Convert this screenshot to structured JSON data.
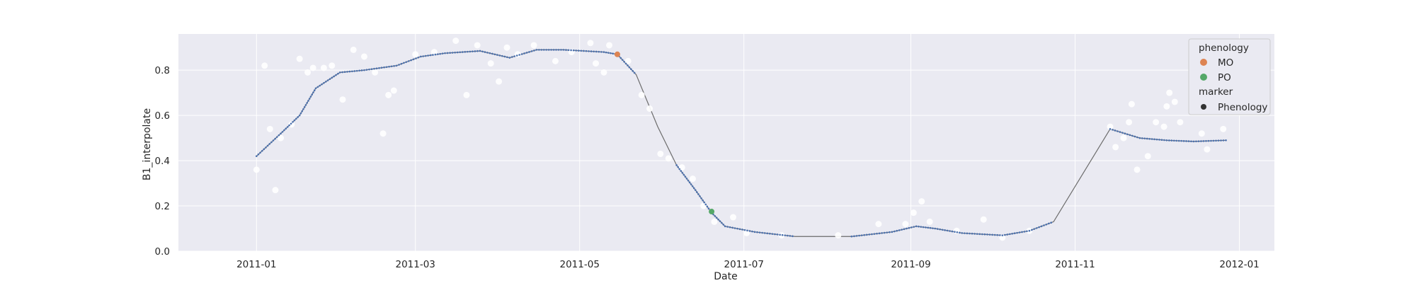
{
  "chart_data": {
    "type": "scatter",
    "title": "",
    "xlabel": "Date",
    "ylabel": "B1_interpolate",
    "x_range": [
      "2010-12-03",
      "2012-01-14"
    ],
    "ylim": [
      0,
      0.96
    ],
    "x_ticks": [
      "2011-01",
      "2011-03",
      "2011-05",
      "2011-07",
      "2011-09",
      "2011-11",
      "2012-01"
    ],
    "y_ticks": [
      0.0,
      0.2,
      0.4,
      0.6,
      0.8
    ],
    "grid": true,
    "legend_placement": "top-right",
    "legend": {
      "group1_title": "phenology",
      "group2_title": "marker",
      "items": [
        {
          "label": "MO",
          "color": "#dd8452"
        },
        {
          "label": "PO",
          "color": "#55a868"
        },
        {
          "label": "Phenology",
          "color": "#333333"
        }
      ]
    },
    "colors": {
      "background": "#eaeaf2",
      "grid": "#ffffff",
      "raw_points": "#ffffff",
      "interpolated_line": "#6b6b6b",
      "interpolated_points": "#4c72b0"
    },
    "series": [
      {
        "kind": "interpolated_curve",
        "points": [
          [
            "2011-01-01",
            0.42
          ],
          [
            "2011-01-10",
            0.52
          ],
          [
            "2011-01-17",
            0.6
          ],
          [
            "2011-01-23",
            0.72
          ],
          [
            "2011-02-01",
            0.79
          ],
          [
            "2011-02-10",
            0.8
          ],
          [
            "2011-02-22",
            0.82
          ],
          [
            "2011-03-03",
            0.86
          ],
          [
            "2011-03-12",
            0.875
          ],
          [
            "2011-03-25",
            0.885
          ],
          [
            "2011-04-05",
            0.855
          ],
          [
            "2011-04-15",
            0.89
          ],
          [
            "2011-04-25",
            0.89
          ],
          [
            "2011-05-10",
            0.88
          ],
          [
            "2011-05-15",
            0.87
          ],
          [
            "2011-05-22",
            0.78
          ],
          [
            "2011-05-30",
            0.55
          ],
          [
            "2011-06-06",
            0.38
          ],
          [
            "2011-06-13",
            0.27
          ],
          [
            "2011-06-19",
            0.17
          ],
          [
            "2011-06-24",
            0.11
          ],
          [
            "2011-07-05",
            0.085
          ],
          [
            "2011-07-20",
            0.065
          ],
          [
            "2011-08-10",
            0.065
          ],
          [
            "2011-08-25",
            0.085
          ],
          [
            "2011-09-03",
            0.11
          ],
          [
            "2011-09-10",
            0.1
          ],
          [
            "2011-09-20",
            0.08
          ],
          [
            "2011-10-05",
            0.07
          ],
          [
            "2011-10-15",
            0.09
          ],
          [
            "2011-10-24",
            0.13
          ],
          [
            "2011-11-14",
            0.54
          ],
          [
            "2011-11-25",
            0.5
          ],
          [
            "2011-12-05",
            0.49
          ],
          [
            "2011-12-15",
            0.485
          ],
          [
            "2011-12-27",
            0.49
          ]
        ]
      },
      {
        "kind": "raw_observations",
        "points": [
          [
            "2011-01-01",
            0.36
          ],
          [
            "2011-01-04",
            0.82
          ],
          [
            "2011-01-06",
            0.54
          ],
          [
            "2011-01-08",
            0.27
          ],
          [
            "2011-01-10",
            0.5
          ],
          [
            "2011-01-14",
            0.56
          ],
          [
            "2011-01-17",
            0.85
          ],
          [
            "2011-01-20",
            0.79
          ],
          [
            "2011-01-22",
            0.81
          ],
          [
            "2011-01-26",
            0.81
          ],
          [
            "2011-01-29",
            0.82
          ],
          [
            "2011-02-02",
            0.67
          ],
          [
            "2011-02-06",
            0.89
          ],
          [
            "2011-02-10",
            0.86
          ],
          [
            "2011-02-14",
            0.79
          ],
          [
            "2011-02-17",
            0.52
          ],
          [
            "2011-02-19",
            0.69
          ],
          [
            "2011-02-21",
            0.71
          ],
          [
            "2011-03-01",
            0.87
          ],
          [
            "2011-03-08",
            0.88
          ],
          [
            "2011-03-16",
            0.93
          ],
          [
            "2011-03-20",
            0.69
          ],
          [
            "2011-03-24",
            0.91
          ],
          [
            "2011-03-29",
            0.83
          ],
          [
            "2011-04-01",
            0.75
          ],
          [
            "2011-04-04",
            0.9
          ],
          [
            "2011-04-08",
            0.87
          ],
          [
            "2011-04-14",
            0.91
          ],
          [
            "2011-04-22",
            0.84
          ],
          [
            "2011-04-28",
            0.88
          ],
          [
            "2011-05-05",
            0.92
          ],
          [
            "2011-05-07",
            0.83
          ],
          [
            "2011-05-10",
            0.79
          ],
          [
            "2011-05-12",
            0.91
          ],
          [
            "2011-05-19",
            0.84
          ],
          [
            "2011-05-24",
            0.69
          ],
          [
            "2011-05-27",
            0.63
          ],
          [
            "2011-05-31",
            0.43
          ],
          [
            "2011-06-03",
            0.41
          ],
          [
            "2011-06-08",
            0.37
          ],
          [
            "2011-06-12",
            0.32
          ],
          [
            "2011-06-16",
            0.2
          ],
          [
            "2011-06-20",
            0.13
          ],
          [
            "2011-06-27",
            0.15
          ],
          [
            "2011-07-02",
            0.08
          ],
          [
            "2011-07-15",
            0.07
          ],
          [
            "2011-08-05",
            0.07
          ],
          [
            "2011-08-20",
            0.12
          ],
          [
            "2011-08-30",
            0.12
          ],
          [
            "2011-09-02",
            0.17
          ],
          [
            "2011-09-05",
            0.22
          ],
          [
            "2011-09-08",
            0.13
          ],
          [
            "2011-09-18",
            0.09
          ],
          [
            "2011-09-28",
            0.14
          ],
          [
            "2011-10-05",
            0.06
          ],
          [
            "2011-10-15",
            0.09
          ],
          [
            "2011-11-14",
            0.55
          ],
          [
            "2011-11-16",
            0.46
          ],
          [
            "2011-11-19",
            0.5
          ],
          [
            "2011-11-21",
            0.57
          ],
          [
            "2011-11-22",
            0.65
          ],
          [
            "2011-11-24",
            0.36
          ],
          [
            "2011-11-28",
            0.42
          ],
          [
            "2011-12-01",
            0.57
          ],
          [
            "2011-12-04",
            0.55
          ],
          [
            "2011-12-05",
            0.64
          ],
          [
            "2011-12-06",
            0.7
          ],
          [
            "2011-12-08",
            0.66
          ],
          [
            "2011-12-10",
            0.57
          ],
          [
            "2011-12-18",
            0.52
          ],
          [
            "2011-12-20",
            0.45
          ],
          [
            "2011-12-26",
            0.54
          ]
        ]
      },
      {
        "kind": "phenology",
        "name": "MO",
        "points": [
          [
            "2011-05-15",
            0.87
          ]
        ]
      },
      {
        "kind": "phenology",
        "name": "PO",
        "points": [
          [
            "2011-06-19",
            0.175
          ]
        ]
      }
    ]
  }
}
